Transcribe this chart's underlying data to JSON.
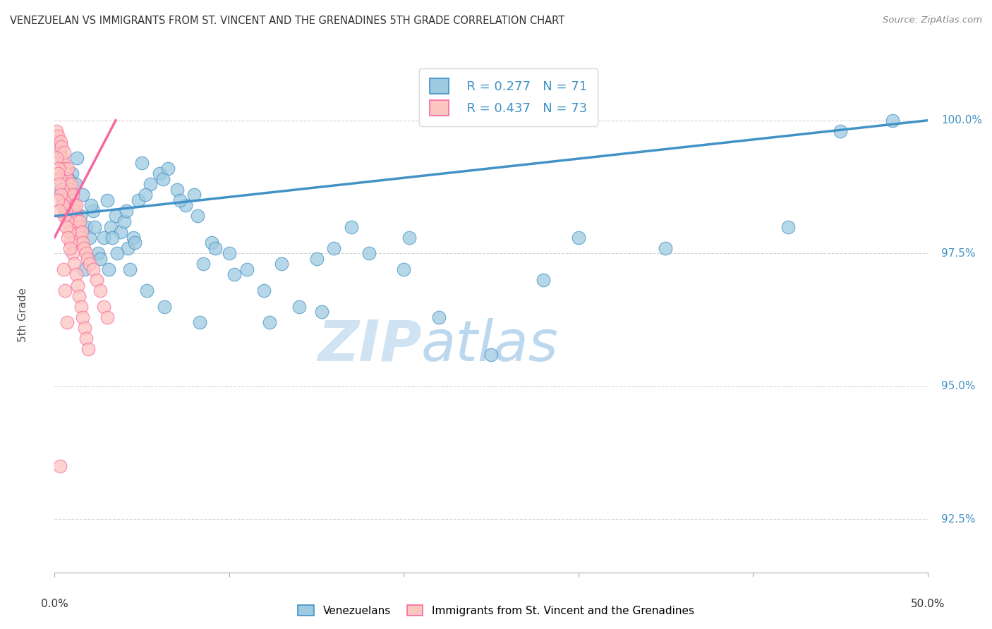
{
  "title": "VENEZUELAN VS IMMIGRANTS FROM ST. VINCENT AND THE GRENADINES 5TH GRADE CORRELATION CHART",
  "source": "Source: ZipAtlas.com",
  "ylabel": "5th Grade",
  "ytick_values": [
    92.5,
    95.0,
    97.5,
    100.0
  ],
  "xlim": [
    0.0,
    50.0
  ],
  "ylim": [
    91.5,
    101.2
  ],
  "legend_entries": [
    {
      "R": "0.277",
      "N": "71"
    },
    {
      "R": "0.437",
      "N": "73"
    }
  ],
  "legend_labels_bottom": [
    "Venezuelans",
    "Immigrants from St. Vincent and the Grenadines"
  ],
  "watermark_zip": "ZIP",
  "watermark_atlas": "atlas",
  "blue_scatter_x": [
    0.5,
    1.0,
    1.2,
    1.5,
    1.8,
    2.0,
    2.2,
    2.5,
    2.8,
    3.0,
    3.2,
    3.5,
    3.8,
    4.0,
    4.2,
    4.5,
    4.8,
    5.0,
    5.5,
    6.0,
    6.5,
    7.0,
    7.5,
    8.0,
    8.5,
    9.0,
    10.0,
    11.0,
    12.0,
    13.0,
    14.0,
    15.0,
    16.0,
    17.0,
    18.0,
    20.0,
    22.0,
    25.0,
    28.0,
    30.0,
    0.8,
    1.3,
    1.6,
    2.1,
    2.6,
    3.1,
    3.6,
    4.1,
    4.6,
    5.2,
    6.2,
    7.2,
    8.2,
    9.2,
    0.3,
    0.6,
    1.7,
    2.3,
    3.3,
    4.3,
    5.3,
    6.3,
    8.3,
    10.3,
    12.3,
    15.3,
    20.3,
    35.0,
    42.0,
    45.0,
    48.0
  ],
  "blue_scatter_y": [
    98.5,
    99.0,
    98.8,
    98.2,
    98.0,
    97.8,
    98.3,
    97.5,
    97.8,
    98.5,
    98.0,
    98.2,
    97.9,
    98.1,
    97.6,
    97.8,
    98.5,
    99.2,
    98.8,
    99.0,
    99.1,
    98.7,
    98.4,
    98.6,
    97.3,
    97.7,
    97.5,
    97.2,
    96.8,
    97.3,
    96.5,
    97.4,
    97.6,
    98.0,
    97.5,
    97.2,
    96.3,
    95.6,
    97.0,
    97.8,
    98.9,
    99.3,
    98.6,
    98.4,
    97.4,
    97.2,
    97.5,
    98.3,
    97.7,
    98.6,
    98.9,
    98.5,
    98.2,
    97.6,
    98.7,
    98.4,
    97.2,
    98.0,
    97.8,
    97.2,
    96.8,
    96.5,
    96.2,
    97.1,
    96.2,
    96.4,
    97.8,
    97.6,
    98.0,
    99.8,
    100.0
  ],
  "pink_scatter_x": [
    0.1,
    0.15,
    0.2,
    0.25,
    0.3,
    0.35,
    0.4,
    0.45,
    0.5,
    0.55,
    0.6,
    0.65,
    0.7,
    0.75,
    0.8,
    0.85,
    0.9,
    0.95,
    1.0,
    1.05,
    1.1,
    1.15,
    1.2,
    1.25,
    1.3,
    1.35,
    1.4,
    1.45,
    1.5,
    1.55,
    1.6,
    1.7,
    1.8,
    1.9,
    2.0,
    2.2,
    2.4,
    2.6,
    2.8,
    3.0,
    0.12,
    0.22,
    0.32,
    0.42,
    0.52,
    0.62,
    0.72,
    0.82,
    0.92,
    1.02,
    1.12,
    1.22,
    1.32,
    1.42,
    1.52,
    1.62,
    1.72,
    1.82,
    1.92,
    0.17,
    0.27,
    0.37,
    0.47,
    0.57,
    0.67,
    0.77,
    0.87,
    0.18,
    0.28,
    0.5,
    0.6,
    0.7,
    0.3
  ],
  "pink_scatter_y": [
    99.8,
    99.6,
    99.7,
    99.5,
    99.4,
    99.6,
    99.5,
    99.3,
    99.2,
    99.4,
    99.1,
    99.0,
    98.9,
    99.1,
    98.8,
    98.7,
    98.6,
    98.8,
    98.5,
    98.6,
    98.4,
    98.3,
    98.2,
    98.4,
    98.1,
    98.0,
    97.9,
    98.1,
    97.8,
    97.9,
    97.7,
    97.6,
    97.5,
    97.4,
    97.3,
    97.2,
    97.0,
    96.8,
    96.5,
    96.3,
    99.3,
    99.1,
    98.9,
    98.7,
    98.5,
    98.3,
    98.1,
    97.9,
    97.7,
    97.5,
    97.3,
    97.1,
    96.9,
    96.7,
    96.5,
    96.3,
    96.1,
    95.9,
    95.7,
    99.0,
    98.8,
    98.6,
    98.4,
    98.2,
    98.0,
    97.8,
    97.6,
    98.5,
    98.3,
    97.2,
    96.8,
    96.2,
    93.5
  ],
  "blue_line_x": [
    0.0,
    50.0
  ],
  "blue_line_y": [
    98.2,
    100.0
  ],
  "pink_line_x": [
    0.0,
    3.5
  ],
  "pink_line_y": [
    97.8,
    100.0
  ],
  "blue_color": "#4292c6",
  "pink_color": "#f768a1",
  "blue_scatter_color": "#9ecae1",
  "pink_scatter_color": "#fcc5c0",
  "grid_color": "#cccccc",
  "title_color": "#333333",
  "axis_color": "#4292c6"
}
